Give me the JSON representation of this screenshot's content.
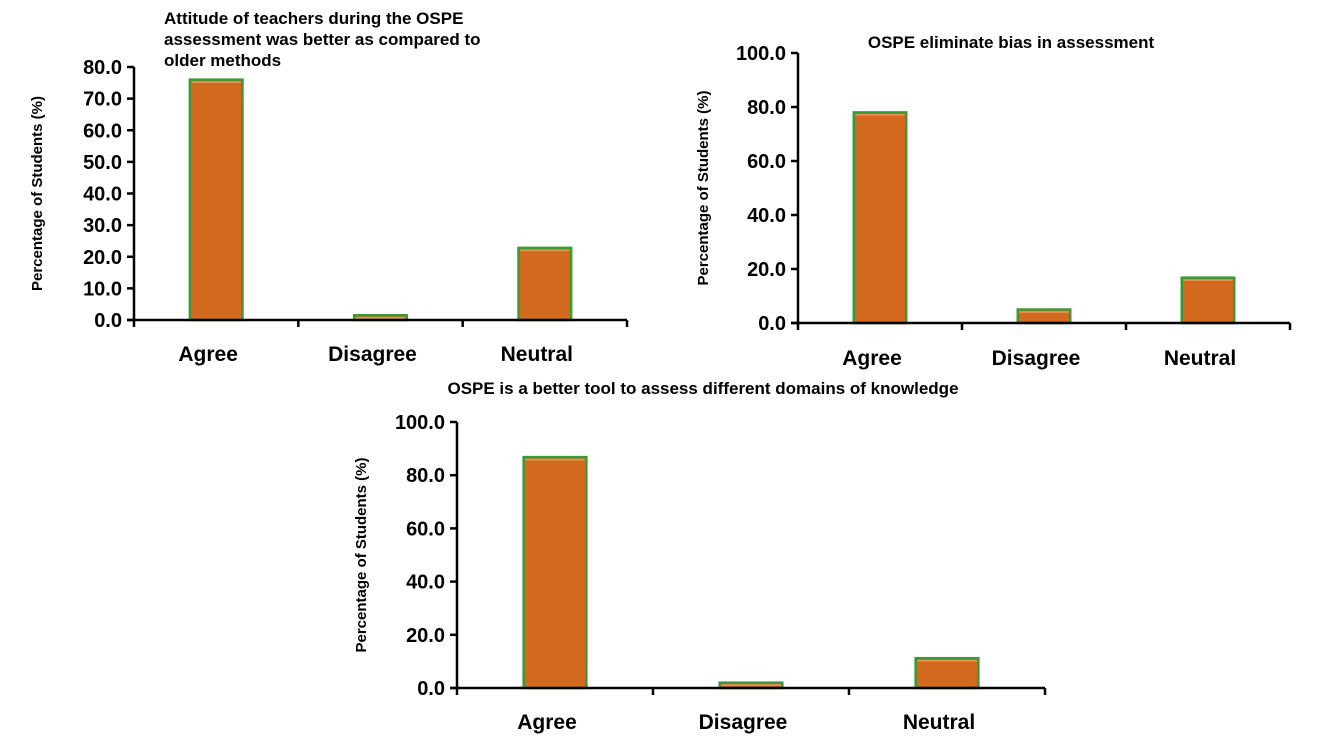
{
  "chart_data": [
    {
      "type": "bar",
      "title_lines": [
        "Attitude of teachers during the OSPE",
        "assessment was better as compared to",
        "older methods"
      ],
      "ylabel": "Percentage of Students (%)",
      "categories": [
        "Agree",
        "Disagree",
        "Neutral"
      ],
      "values": [
        76.0,
        1.5,
        22.8
      ],
      "ylim": [
        0,
        80
      ],
      "yticks": [
        "0.0",
        "10.0",
        "20.0",
        "30.0",
        "40.0",
        "50.0",
        "60.0",
        "70.0",
        "80.0"
      ],
      "bar_color": "#D2691E",
      "bar_edge_color": "#3A9A3A"
    },
    {
      "type": "bar",
      "title_lines": [
        "OSPE eliminate bias in assessment"
      ],
      "ylabel": "Percentage of Students (%)",
      "categories": [
        "Agree",
        "Disagree",
        "Neutral"
      ],
      "values": [
        78.0,
        5.0,
        16.8
      ],
      "ylim": [
        0,
        100
      ],
      "yticks": [
        "0.0",
        "20.0",
        "40.0",
        "60.0",
        "80.0",
        "100.0"
      ],
      "bar_color": "#D2691E",
      "bar_edge_color": "#3A9A3A"
    },
    {
      "type": "bar",
      "title_lines": [
        "OSPE is a better tool to assess different domains of knowledge"
      ],
      "ylabel": "Percentage of Students (%)",
      "categories": [
        "Agree",
        "Disagree",
        "Neutral"
      ],
      "values": [
        86.8,
        2.0,
        11.2
      ],
      "ylim": [
        0,
        100
      ],
      "yticks": [
        "0.0",
        "20.0",
        "40.0",
        "60.0",
        "80.0",
        "100.0"
      ],
      "bar_color": "#D2691E",
      "bar_edge_color": "#3A9A3A"
    }
  ]
}
